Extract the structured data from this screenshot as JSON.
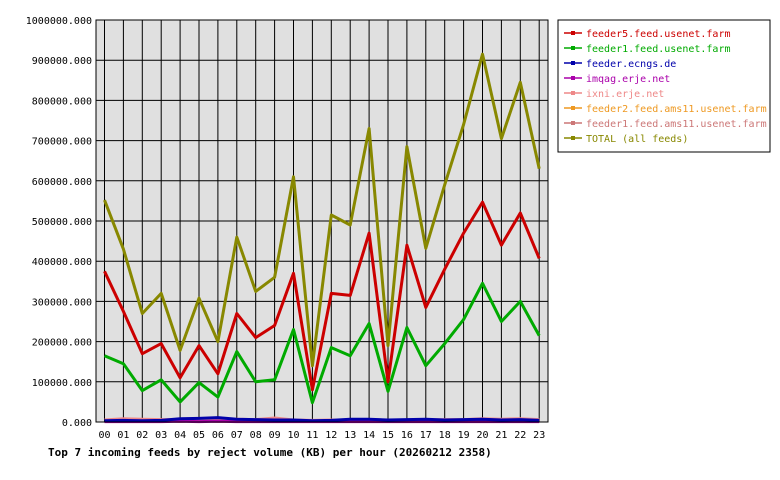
{
  "chart_data": {
    "type": "line",
    "title": "Top 7 incoming feeds by reject volume (KB) per hour (20260212 2358)",
    "x": [
      "00",
      "01",
      "02",
      "03",
      "04",
      "05",
      "06",
      "07",
      "08",
      "09",
      "10",
      "11",
      "12",
      "13",
      "14",
      "15",
      "16",
      "17",
      "18",
      "19",
      "20",
      "21",
      "22",
      "23"
    ],
    "ylim": [
      0,
      1000000
    ],
    "yticks": [
      "0.000",
      "100000.000",
      "200000.000",
      "300000.000",
      "400000.000",
      "500000.000",
      "600000.000",
      "700000.000",
      "800000.000",
      "900000.000",
      "1000000.000"
    ],
    "grid": true,
    "legend_position": "right",
    "series": [
      {
        "name": "feeder5.feed.usenet.farm",
        "color": "#cc0000",
        "values": [
          375000,
          275000,
          170000,
          195000,
          110000,
          190000,
          120000,
          270000,
          210000,
          240000,
          370000,
          80000,
          320000,
          315000,
          470000,
          100000,
          440000,
          285000,
          380000,
          470000,
          547000,
          440000,
          520000,
          407000
        ]
      },
      {
        "name": "feeder1.feed.usenet.farm",
        "color": "#00aa00",
        "values": [
          165000,
          145000,
          78000,
          105000,
          50000,
          98000,
          62000,
          175000,
          100000,
          105000,
          230000,
          48000,
          185000,
          165000,
          245000,
          76000,
          235000,
          140000,
          195000,
          255000,
          345000,
          250000,
          300000,
          215000
        ]
      },
      {
        "name": "feeder.ecngs.de",
        "color": "#0000aa",
        "values": [
          3000,
          4000,
          3000,
          4000,
          8000,
          9000,
          11000,
          7000,
          6000,
          5000,
          5000,
          3000,
          4000,
          7000,
          7000,
          5000,
          6000,
          7000,
          5000,
          6000,
          7000,
          5000,
          6000,
          4000
        ]
      },
      {
        "name": "imqag.erje.net",
        "color": "#aa00aa",
        "values": [
          1000,
          1000,
          1000,
          1000,
          2000,
          1000,
          2000,
          1000,
          1000,
          1000,
          1000,
          1000,
          1000,
          1000,
          1000,
          1000,
          1000,
          1000,
          1000,
          1000,
          1000,
          1000,
          1000,
          1000
        ]
      },
      {
        "name": "ixni.erje.net",
        "color": "#ee8888",
        "values": [
          5000,
          8000,
          7000,
          6000,
          6000,
          5000,
          6000,
          7000,
          6000,
          10000,
          5000,
          4000,
          5000,
          5000,
          5000,
          5000,
          5000,
          5000,
          6000,
          6000,
          8000,
          7000,
          8000,
          6000
        ]
      },
      {
        "name": "feeder2.feed.ams11.usenet.farm",
        "color": "#ee9922",
        "values": [
          2000,
          3000,
          3000,
          3000,
          2000,
          3000,
          2000,
          2000,
          3000,
          3000,
          2000,
          2000,
          2000,
          2000,
          2000,
          2000,
          2000,
          2000,
          3000,
          3000,
          3000,
          3000,
          3000,
          2000
        ]
      },
      {
        "name": "feeder1.feed.ams11.usenet.farm",
        "color": "#cc7777",
        "values": [
          4000,
          6000,
          6000,
          5000,
          5000,
          5000,
          5000,
          6000,
          5000,
          8000,
          4000,
          3000,
          4000,
          4000,
          4000,
          4000,
          4000,
          4000,
          5000,
          5000,
          6000,
          5000,
          6000,
          5000
        ]
      },
      {
        "name": "TOTAL (all feeds)",
        "color": "#888800",
        "values": [
          552000,
          430000,
          270000,
          320000,
          178000,
          308000,
          200000,
          460000,
          325000,
          360000,
          610000,
          140000,
          515000,
          490000,
          730000,
          190000,
          685000,
          432000,
          590000,
          740000,
          915000,
          705000,
          845000,
          630000
        ]
      }
    ]
  }
}
